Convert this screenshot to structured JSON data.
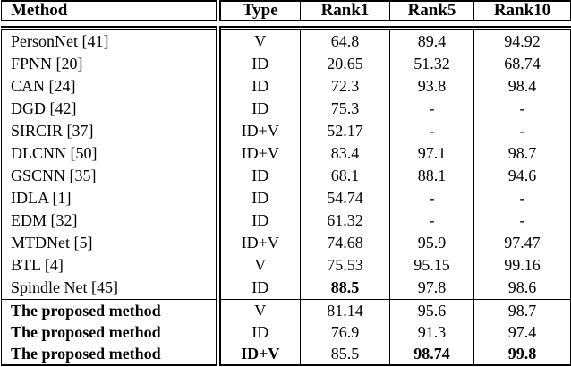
{
  "colors": {
    "border": "#000000",
    "text": "#000000",
    "background": "#ffffff"
  },
  "table": {
    "columns": [
      {
        "key": "method",
        "label": "Method"
      },
      {
        "key": "type",
        "label": "Type"
      },
      {
        "key": "rank1",
        "label": "Rank1"
      },
      {
        "key": "rank5",
        "label": "Rank5"
      },
      {
        "key": "rank10",
        "label": "Rank10"
      }
    ],
    "rows": [
      {
        "method": "PersonNet [41]",
        "type": "V",
        "rank1": "64.8",
        "rank5": "89.4",
        "rank10": "94.92",
        "bold": [],
        "group": "body"
      },
      {
        "method": "FPNN [20]",
        "type": "ID",
        "rank1": "20.65",
        "rank5": "51.32",
        "rank10": "68.74",
        "bold": [],
        "group": "body"
      },
      {
        "method": "CAN [24]",
        "type": "ID",
        "rank1": "72.3",
        "rank5": "93.8",
        "rank10": "98.4",
        "bold": [],
        "group": "body"
      },
      {
        "method": "DGD [42]",
        "type": "ID",
        "rank1": "75.3",
        "rank5": "-",
        "rank10": "-",
        "bold": [],
        "group": "body"
      },
      {
        "method": "SIRCIR [37]",
        "type": "ID+V",
        "rank1": "52.17",
        "rank5": "-",
        "rank10": "-",
        "bold": [],
        "group": "body"
      },
      {
        "method": "DLCNN [50]",
        "type": "ID+V",
        "rank1": "83.4",
        "rank5": "97.1",
        "rank10": "98.7",
        "bold": [],
        "group": "body"
      },
      {
        "method": "GSCNN [35]",
        "type": "ID",
        "rank1": "68.1",
        "rank5": "88.1",
        "rank10": "94.6",
        "bold": [],
        "group": "body"
      },
      {
        "method": "IDLA [1]",
        "type": "ID",
        "rank1": "54.74",
        "rank5": "-",
        "rank10": "-",
        "bold": [],
        "group": "body"
      },
      {
        "method": "EDM [32]",
        "type": "ID",
        "rank1": "61.32",
        "rank5": "-",
        "rank10": "-",
        "bold": [],
        "group": "body"
      },
      {
        "method": "MTDNet [5]",
        "type": "ID+V",
        "rank1": "74.68",
        "rank5": "95.9",
        "rank10": "97.47",
        "bold": [],
        "group": "body"
      },
      {
        "method": "BTL [4]",
        "type": "V",
        "rank1": "75.53",
        "rank5": "95.15",
        "rank10": "99.16",
        "bold": [],
        "group": "body"
      },
      {
        "method": "Spindle Net [45]",
        "type": "ID",
        "rank1": "88.5",
        "rank5": "97.8",
        "rank10": "98.6",
        "bold": [
          "rank1"
        ],
        "group": "body"
      },
      {
        "method": "The proposed method",
        "type": "V",
        "rank1": "81.14",
        "rank5": "95.6",
        "rank10": "98.7",
        "bold": [
          "method"
        ],
        "group": "proposed",
        "rule_above": true
      },
      {
        "method": "The proposed method",
        "type": "ID",
        "rank1": "76.9",
        "rank5": "91.3",
        "rank10": "97.4",
        "bold": [
          "method"
        ],
        "group": "proposed"
      },
      {
        "method": "The proposed method",
        "type": "ID+V",
        "rank1": "85.5",
        "rank5": "98.74",
        "rank10": "99.8",
        "bold": [
          "method",
          "type",
          "rank5",
          "rank10"
        ],
        "group": "proposed",
        "last": true
      }
    ]
  }
}
